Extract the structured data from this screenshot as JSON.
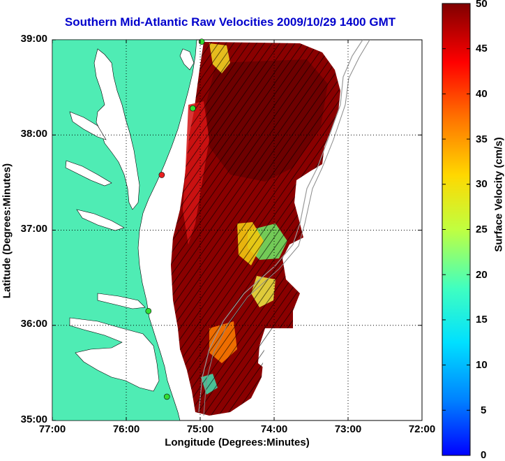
{
  "title": "Southern Mid-Atlantic Raw Velocities 2009/10/29 1400 GMT",
  "x_axis": {
    "label": "Longitude (Degrees:Minutes)",
    "ticks": [
      "77:00",
      "76:00",
      "75:00",
      "74:00",
      "73:00",
      "72:00"
    ]
  },
  "y_axis": {
    "label": "Latitude (Degrees:Minutes)",
    "ticks": [
      "39:00",
      "38:00",
      "37:00",
      "36:00",
      "35:00"
    ]
  },
  "colorbar": {
    "label": "Surface Velocity (cm/s)",
    "ticks": [
      "50",
      "45",
      "40",
      "35",
      "30",
      "25",
      "20",
      "15",
      "10",
      "5",
      "0"
    ],
    "range": [
      0,
      50
    ],
    "colormap": "jet"
  },
  "colors": {
    "land": "#4fecb4",
    "title": "#0000cc",
    "station": "#33dd33",
    "station_alt": "#e82020"
  },
  "chart_data": {
    "type": "map",
    "lon_range": [
      -77,
      -72
    ],
    "lat_range": [
      35,
      39
    ],
    "grid": true,
    "stations": [
      {
        "lon": -74.98,
        "lat": 38.98,
        "color": "green"
      },
      {
        "lon": -75.1,
        "lat": 38.28,
        "color": "green"
      },
      {
        "lon": -75.52,
        "lat": 37.58,
        "color": "red"
      },
      {
        "lon": -75.7,
        "lat": 36.15,
        "color": "green"
      },
      {
        "lon": -75.45,
        "lat": 35.25,
        "color": "green"
      }
    ]
  }
}
